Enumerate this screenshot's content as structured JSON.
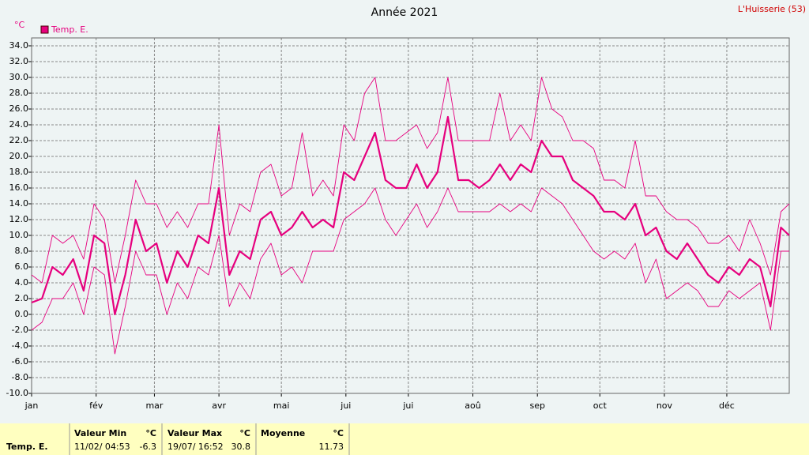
{
  "chart_data": {
    "type": "line",
    "title": "Année 2021",
    "station": "L'Huisserie (53)",
    "unit": "°C",
    "x": [
      0,
      5,
      10,
      15,
      20,
      25,
      30,
      35,
      40,
      45,
      50,
      55,
      60,
      65,
      70,
      75,
      80,
      85,
      90,
      95,
      100,
      105,
      110,
      115,
      120,
      125,
      130,
      135,
      140,
      145,
      150,
      155,
      160,
      165,
      170,
      175,
      180,
      185,
      190,
      195,
      200,
      205,
      210,
      215,
      220,
      225,
      230,
      235,
      240,
      245,
      250,
      255,
      260,
      265,
      270,
      275,
      280,
      285,
      290,
      295,
      300,
      305,
      310,
      315,
      320,
      325,
      330,
      335,
      340,
      345,
      350,
      355,
      360,
      364
    ],
    "series": [
      {
        "name": "Temp. E.",
        "color": "#e6007e",
        "width": 2.2,
        "values": [
          1.5,
          2,
          6,
          5,
          7,
          3,
          10,
          9,
          0,
          5,
          12,
          8,
          9,
          4,
          8,
          6,
          10,
          9,
          16,
          5,
          8,
          7,
          12,
          13,
          10,
          11,
          13,
          11,
          12,
          11,
          18,
          17,
          20,
          23,
          17,
          16,
          16,
          19,
          16,
          18,
          25,
          17,
          17,
          16,
          17,
          19,
          17,
          19,
          18,
          22,
          20,
          20,
          17,
          16,
          15,
          13,
          13,
          12,
          14,
          10,
          11,
          8,
          7,
          9,
          7,
          5,
          4,
          6,
          5,
          7,
          6,
          1,
          11,
          10
        ]
      },
      {
        "color": "#e6007e",
        "width": 0.9,
        "values": [
          5,
          4,
          10,
          9,
          10,
          7,
          14,
          12,
          4,
          10,
          17,
          14,
          14,
          11,
          13,
          11,
          14,
          14,
          24,
          10,
          14,
          13,
          18,
          19,
          15,
          16,
          23,
          15,
          17,
          15,
          24,
          22,
          28,
          30,
          22,
          22,
          23,
          24,
          21,
          23,
          30,
          22,
          22,
          22,
          22,
          28,
          22,
          24,
          22,
          30,
          26,
          25,
          22,
          22,
          21,
          17,
          17,
          16,
          22,
          15,
          15,
          13,
          12,
          12,
          11,
          9,
          9,
          10,
          8,
          12,
          9,
          5,
          13,
          14
        ]
      },
      {
        "color": "#e6007e",
        "width": 0.9,
        "values": [
          -2,
          -1,
          2,
          2,
          4,
          0,
          6,
          5,
          -5,
          1,
          8,
          5,
          5,
          0,
          4,
          2,
          6,
          5,
          10,
          1,
          4,
          2,
          7,
          9,
          5,
          6,
          4,
          8,
          8,
          8,
          12,
          13,
          14,
          16,
          12,
          10,
          12,
          14,
          11,
          13,
          16,
          13,
          13,
          13,
          13,
          14,
          13,
          14,
          13,
          16,
          15,
          14,
          12,
          10,
          8,
          7,
          8,
          7,
          9,
          4,
          7,
          2,
          3,
          4,
          3,
          1,
          1,
          3,
          2,
          3,
          4,
          -2,
          8,
          8
        ]
      }
    ],
    "xlim": [
      0,
      364
    ],
    "xticks": [
      {
        "value": 0,
        "label": "jan"
      },
      {
        "value": 31,
        "label": "fév"
      },
      {
        "value": 59,
        "label": "mar"
      },
      {
        "value": 90,
        "label": "avr"
      },
      {
        "value": 120,
        "label": "mai"
      },
      {
        "value": 151,
        "label": "jui"
      },
      {
        "value": 181,
        "label": "jui"
      },
      {
        "value": 212,
        "label": "aoû"
      },
      {
        "value": 243,
        "label": "sep"
      },
      {
        "value": 273,
        "label": "oct"
      },
      {
        "value": 304,
        "label": "nov"
      },
      {
        "value": 334,
        "label": "déc"
      }
    ],
    "ylim": [
      -10,
      35
    ],
    "yticks": [
      {
        "value": -10,
        "label": "-10.0"
      },
      {
        "value": -8,
        "label": "-8.0"
      },
      {
        "value": -6,
        "label": "-6.0"
      },
      {
        "value": -4,
        "label": "-4.0"
      },
      {
        "value": -2,
        "label": "-2.0"
      },
      {
        "value": 0,
        "label": "0.0"
      },
      {
        "value": 2,
        "label": "2.0"
      },
      {
        "value": 4,
        "label": "4.0"
      },
      {
        "value": 6,
        "label": "6.0"
      },
      {
        "value": 8,
        "label": "8.0"
      },
      {
        "value": 10,
        "label": "10.0"
      },
      {
        "value": 12,
        "label": "12.0"
      },
      {
        "value": 14,
        "label": "14.0"
      },
      {
        "value": 16,
        "label": "16.0"
      },
      {
        "value": 18,
        "label": "18.0"
      },
      {
        "value": 20,
        "label": "20.0"
      },
      {
        "value": 22,
        "label": "22.0"
      },
      {
        "value": 24,
        "label": "24.0"
      },
      {
        "value": 26,
        "label": "26.0"
      },
      {
        "value": 28,
        "label": "28.0"
      },
      {
        "value": 30,
        "label": "30.0"
      },
      {
        "value": 32,
        "label": "32.0"
      },
      {
        "value": 34,
        "label": "34.0"
      }
    ],
    "grid": true
  },
  "stats": {
    "label": "Temp. E.",
    "min": {
      "title": "Valeur Min",
      "unit": "°C",
      "date": "11/02/ 04:53",
      "value": "-6.3"
    },
    "max": {
      "title": "Valeur Max",
      "unit": "°C",
      "date": "19/07/ 16:52",
      "value": "30.8"
    },
    "mean": {
      "title": "Moyenne",
      "unit": "°C",
      "value": "11.73"
    }
  }
}
